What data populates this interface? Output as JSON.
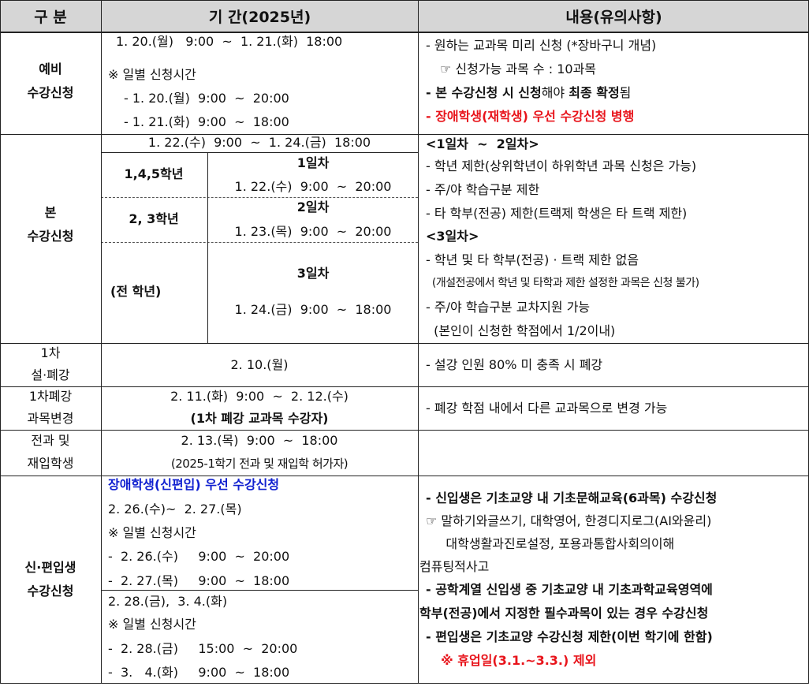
{
  "header": {
    "col1": "구 분",
    "col2": "기 간(2025년)",
    "col3": "내용(유의사항)"
  },
  "pre": {
    "label": [
      "예비",
      "수강신청"
    ],
    "period": [
      "1. 20.(월)   9:00  ~  1. 21.(화)  18:00",
      "※ 일별 신청시간",
      "- 1. 20.(월)  9:00  ~  20:00",
      "- 1. 21.(화)  9:00  ~  18:00"
    ],
    "content": {
      "l1": "- 원하는 교과목 미리 신청 (*장바구니 개념)",
      "l2": "☞ 신청가능 과목 수 : 10과목",
      "l3a": "- 본 수강신청 시 신청",
      "l3b": "해야 ",
      "l3c": "최종 확정",
      "l3d": "됨",
      "l4": "- 장애학생(재학생) 우선 수강신청 병행"
    }
  },
  "main": {
    "label": [
      "본",
      "수강신청"
    ],
    "period": "1. 22.(수)  9:00  ~  1. 24.(금)  18:00",
    "groups": [
      {
        "grade": "1,4,5학년",
        "day": "1일차",
        "time": "1. 22.(수)  9:00  ~  20:00"
      },
      {
        "grade": "2, 3학년",
        "day": "2일차",
        "time": "1. 23.(목)  9:00  ~  20:00"
      },
      {
        "grade": "(전 학년)",
        "day": "3일차",
        "time": "1. 24.(금)  9:00  ~  18:00"
      }
    ],
    "content": [
      "<1일차  ~  2일차>",
      "- 학년 제한(상위학년이 하위학년 과목 신청은 가능)",
      "- 주/야 학습구분 제한",
      "- 타 학부(전공) 제한(트랙제 학생은 타 트랙 제한)",
      "<3일차>",
      "- 학년 및 타 학부(전공) · 트랙 제한 없음",
      "  (개설전공에서 학년 및 타학과 제한 설정한 과목은 신청 불가)",
      "- 주/야 학습구분 교차지원 가능",
      "  (본인이 신청한 학점에서 1/2이내)"
    ]
  },
  "cancel1": {
    "label": [
      "1차",
      "설·폐강"
    ],
    "period": "2. 10.(월)",
    "content": "- 설강 인원 80% 미 충족 시 폐강"
  },
  "change": {
    "label": [
      "1차폐강",
      "과목변경"
    ],
    "period": [
      "2. 11.(화)  9:00  ~  2. 12.(수)",
      "(1차 폐강 교과목 수강자)"
    ],
    "content": "- 폐강 학점 내에서 다른 교과목으로 변경 가능"
  },
  "transfer": {
    "label": [
      "전과 및",
      "재입학생"
    ],
    "period": [
      "2. 13.(목)  9:00  ~  18:00",
      "(2025-1학기 전과 및 재입학 허가자)"
    ]
  },
  "newstu": {
    "label": [
      "신·편입생",
      "수강신청"
    ],
    "period": [
      "장애학생(신편입) 우선 수강신청",
      "2. 26.(수)~  2. 27.(목)",
      "※ 일별 신청시간",
      "-  2. 26.(수)     9:00  ~  20:00",
      "-  2. 27.(목)     9:00  ~  18:00",
      "2. 28.(금),  3. 4.(화)",
      "※ 일별 신청시간",
      "-  2. 28.(금)     15:00  ~  20:00",
      "-  3.   4.(화)     9:00  ~  18:00"
    ],
    "content": [
      "- 신입생은 기초교양 내 기초문해교육(6과목) 수강신청",
      "☞ 말하기와글쓰기, 대학영어, 한경디지로그(AI와윤리)",
      "     대학생활과진로설정, 포용과통합사회의이해",
      "컴퓨팅적사고",
      "- 공학계열 신입생 중 기초교양 내 기초과학교육영역에",
      "학부(전공)에서 지정한 필수과목이 있는 경우 수강신청",
      "- 편입생은 기초교양 수강신청 제한(이번 학기에 한함)",
      "  ※ 휴업일(3.1.~3.3.) 제외"
    ]
  }
}
